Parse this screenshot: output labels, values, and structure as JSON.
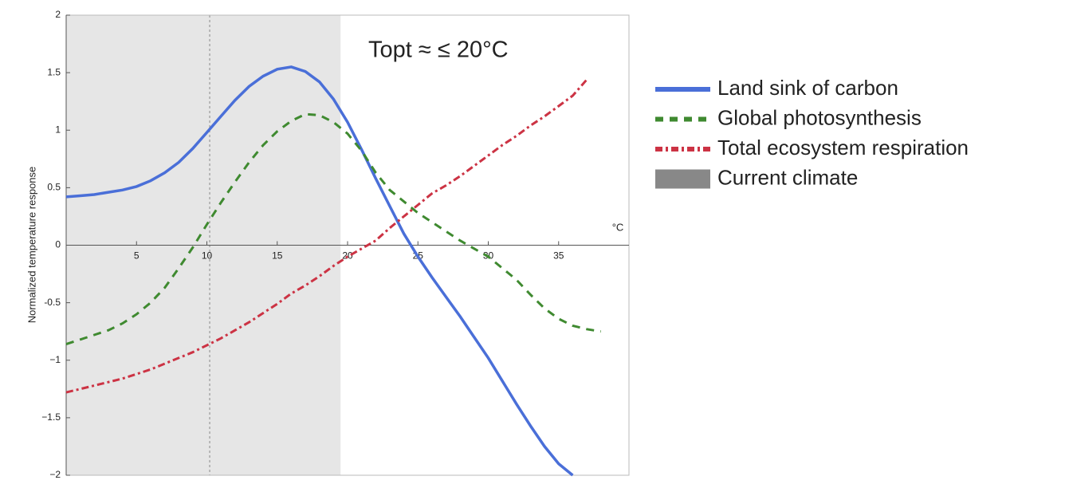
{
  "chart_data": {
    "type": "line",
    "ylabel": "Normalized temperature response",
    "xlabel": "°C",
    "annotation": "Topt ≈ ≤ 20°C",
    "xlim": [
      0,
      40
    ],
    "xticks": [
      5,
      10,
      15,
      20,
      25,
      30,
      35
    ],
    "ylim": [
      -2,
      2
    ],
    "yticks": [
      2,
      1.5,
      1,
      0.5,
      0,
      -0.5,
      {
        "value": -1,
        "label": "−1"
      },
      {
        "value": -1.5,
        "label": "−1.5"
      },
      {
        "value": -2,
        "label": "−2"
      }
    ],
    "span": {
      "name": "Current climate",
      "x": [
        0,
        19.5
      ],
      "color": "#e6e6e6",
      "legend_color": "#888888"
    },
    "vline": 10.2,
    "x": [
      0,
      1,
      2,
      3,
      4,
      5,
      6,
      7,
      8,
      9,
      10,
      11,
      12,
      13,
      14,
      15,
      16,
      17,
      18,
      19,
      20,
      21,
      22,
      23,
      24,
      25,
      26,
      27,
      28,
      29,
      30,
      31,
      32,
      33,
      34,
      35,
      36,
      37,
      38
    ],
    "series": [
      {
        "name": "Land sink of carbon",
        "color": "#4a6fd8",
        "style": "solid",
        "values": [
          0.42,
          0.43,
          0.44,
          0.46,
          0.48,
          0.51,
          0.56,
          0.63,
          0.72,
          0.84,
          0.98,
          1.12,
          1.26,
          1.38,
          1.47,
          1.53,
          1.55,
          1.51,
          1.42,
          1.27,
          1.07,
          0.83,
          0.58,
          0.34,
          0.1,
          -0.1,
          -0.28,
          -0.45,
          -0.62,
          -0.8,
          -0.98,
          -1.18,
          -1.38,
          -1.57,
          -1.75,
          -1.9,
          -2,
          null,
          null
        ]
      },
      {
        "name": "Global photosynthesis",
        "color": "#3f8a30",
        "style": "dashed",
        "values": [
          -0.86,
          -0.82,
          -0.78,
          -0.74,
          -0.68,
          -0.6,
          -0.5,
          -0.37,
          -0.2,
          -0.02,
          0.18,
          0.37,
          0.55,
          0.72,
          0.87,
          0.99,
          1.08,
          1.14,
          1.13,
          1.07,
          0.97,
          0.82,
          0.63,
          0.48,
          0.38,
          0.28,
          0.2,
          0.12,
          0.04,
          -0.03,
          -0.1,
          -0.2,
          -0.3,
          -0.43,
          -0.55,
          -0.64,
          -0.7,
          -0.73,
          -0.75
        ]
      },
      {
        "name": "Total ecosystem respiration",
        "color": "#cc3344",
        "style": "dashdot",
        "values": [
          -1.28,
          -1.25,
          -1.22,
          -1.19,
          -1.16,
          -1.12,
          -1.08,
          -1.03,
          -0.98,
          -0.93,
          -0.87,
          -0.81,
          -0.74,
          -0.67,
          -0.59,
          -0.51,
          -0.42,
          -0.35,
          -0.27,
          -0.18,
          -0.1,
          -0.03,
          0.04,
          0.15,
          0.25,
          0.35,
          0.45,
          0.52,
          0.6,
          0.69,
          0.78,
          0.87,
          0.95,
          1.04,
          1.12,
          1.21,
          1.3,
          1.44,
          null
        ]
      }
    ]
  }
}
